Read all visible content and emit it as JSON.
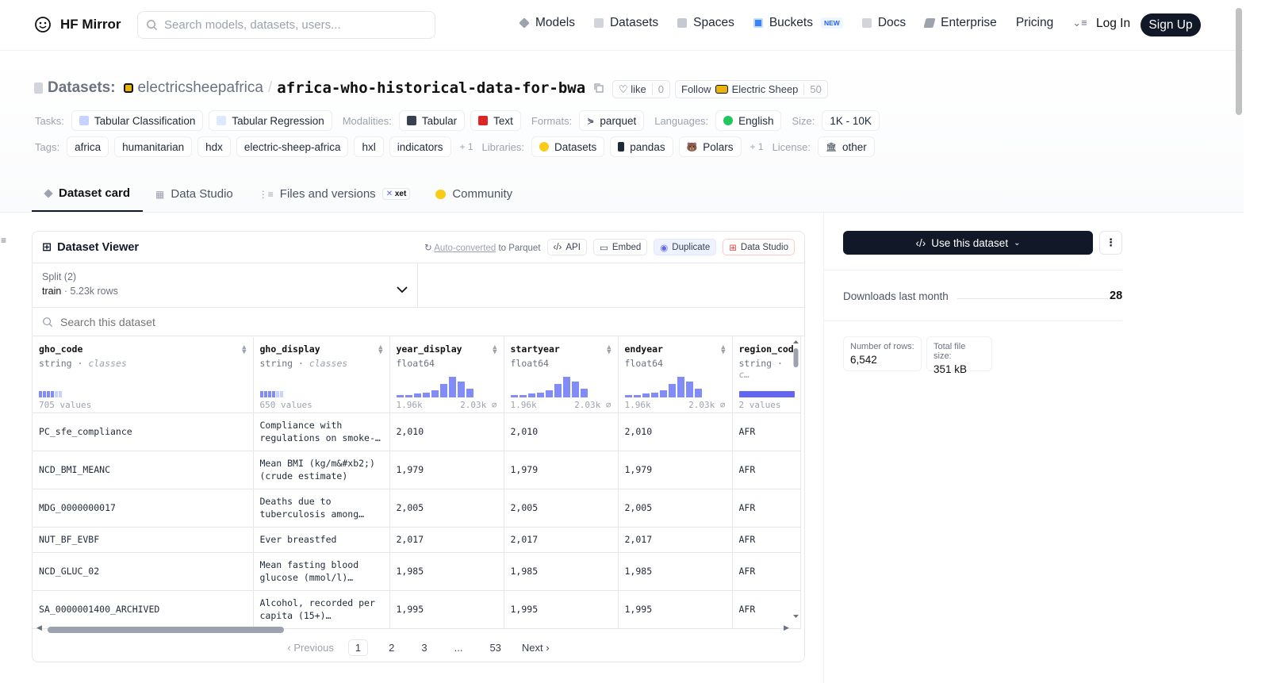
{
  "nav": {
    "brand": "HF Mirror",
    "search_placeholder": "Search models, datasets, users...",
    "links": [
      "Models",
      "Datasets",
      "Spaces",
      "Buckets",
      "Docs",
      "Enterprise",
      "Pricing"
    ],
    "buckets_badge": "NEW",
    "login": "Log In",
    "signup": "Sign Up"
  },
  "header": {
    "type_label": "Datasets:",
    "owner": "electricsheepafrica",
    "slash": "/",
    "name": "africa-who-historical-data-for-bwa",
    "like_label": "like",
    "like_count": "0",
    "follow_label": "Follow",
    "follow_org": "Electric Sheep",
    "follow_count": "50"
  },
  "meta_row1": {
    "tasks_label": "Tasks:",
    "tasks": [
      "Tabular Classification",
      "Tabular Regression"
    ],
    "modalities_label": "Modalities:",
    "modalities": [
      "Tabular",
      "Text"
    ],
    "formats_label": "Formats:",
    "formats": [
      "parquet"
    ],
    "languages_label": "Languages:",
    "languages": [
      "English"
    ],
    "size_label": "Size:",
    "size": "1K - 10K"
  },
  "meta_row2": {
    "tags_label": "Tags:",
    "tags": [
      "africa",
      "humanitarian",
      "hdx",
      "electric-sheep-africa",
      "hxl",
      "indicators"
    ],
    "tags_more": "+ 1",
    "libraries_label": "Libraries:",
    "libraries": [
      "Datasets",
      "pandas",
      "Polars"
    ],
    "libraries_more": "+ 1",
    "license_label": "License:",
    "license": "other"
  },
  "tabs": {
    "dataset_card": "Dataset card",
    "data_studio": "Data Studio",
    "files": "Files and versions",
    "xet": "xet",
    "community": "Community"
  },
  "viewer": {
    "title": "Dataset Viewer",
    "auto_converted": "Auto-converted",
    "to_parquet": "to Parquet",
    "api": "API",
    "embed": "Embed",
    "duplicate": "Duplicate",
    "data_studio": "Data Studio",
    "split_label": "Split (2)",
    "split_value": "train",
    "split_rows": "5.23k rows",
    "search_placeholder": "Search this dataset",
    "columns": [
      {
        "name": "gho_code",
        "type": "string",
        "kind": "classes",
        "foot_left": "705 values",
        "foot_right": ""
      },
      {
        "name": "gho_display",
        "type": "string",
        "kind": "classes",
        "foot_left": "650 values",
        "foot_right": ""
      },
      {
        "name": "year_display",
        "type": "float64",
        "kind": "",
        "foot_left": "1.96k",
        "foot_right": "2.03k ⌀"
      },
      {
        "name": "startyear",
        "type": "float64",
        "kind": "",
        "foot_left": "1.96k",
        "foot_right": "2.03k ⌀"
      },
      {
        "name": "endyear",
        "type": "float64",
        "kind": "",
        "foot_left": "1.96k",
        "foot_right": "2.03k ⌀"
      },
      {
        "name": "region_cod",
        "type": "string",
        "kind": "c…",
        "foot_left": "2 values",
        "foot_right": ""
      }
    ],
    "rows": [
      {
        "gho_code": "PC_sfe_compliance",
        "gho_display": "Compliance with regulations on smoke-…",
        "year_display": "2,010",
        "startyear": "2,010",
        "endyear": "2,010",
        "region": "AFR"
      },
      {
        "gho_code": "NCD_BMI_MEANC",
        "gho_display": "Mean BMI (kg/m&#xb2;) (crude estimate)",
        "year_display": "1,979",
        "startyear": "1,979",
        "endyear": "1,979",
        "region": "AFR"
      },
      {
        "gho_code": "MDG_0000000017",
        "gho_display": "Deaths due to tuberculosis among…",
        "year_display": "2,005",
        "startyear": "2,005",
        "endyear": "2,005",
        "region": "AFR"
      },
      {
        "gho_code": "NUT_BF_EVBF",
        "gho_display": "Ever breastfed",
        "year_display": "2,017",
        "startyear": "2,017",
        "endyear": "2,017",
        "region": "AFR"
      },
      {
        "gho_code": "NCD_GLUC_02",
        "gho_display": "Mean fasting blood glucose (mmol/l)…",
        "year_display": "1,985",
        "startyear": "1,985",
        "endyear": "1,985",
        "region": "AFR"
      },
      {
        "gho_code": "SA_0000001400_ARCHIVED",
        "gho_display": "Alcohol, recorded per capita (15+)…",
        "year_display": "1,995",
        "startyear": "1,995",
        "endyear": "1,995",
        "region": "AFR"
      }
    ],
    "pager": {
      "prev": "Previous",
      "pages": [
        "1",
        "2",
        "3",
        "...",
        "53"
      ],
      "current": "1",
      "next": "Next"
    }
  },
  "sidebar": {
    "use_button": "Use this dataset",
    "downloads_label": "Downloads last month",
    "downloads_value": "28",
    "rows_label": "Number of rows:",
    "rows_value": "6,542",
    "size_label": "Total file size:",
    "size_value": "351 kB"
  },
  "colors": {
    "accent": "#818cf8",
    "dark": "#111827"
  }
}
